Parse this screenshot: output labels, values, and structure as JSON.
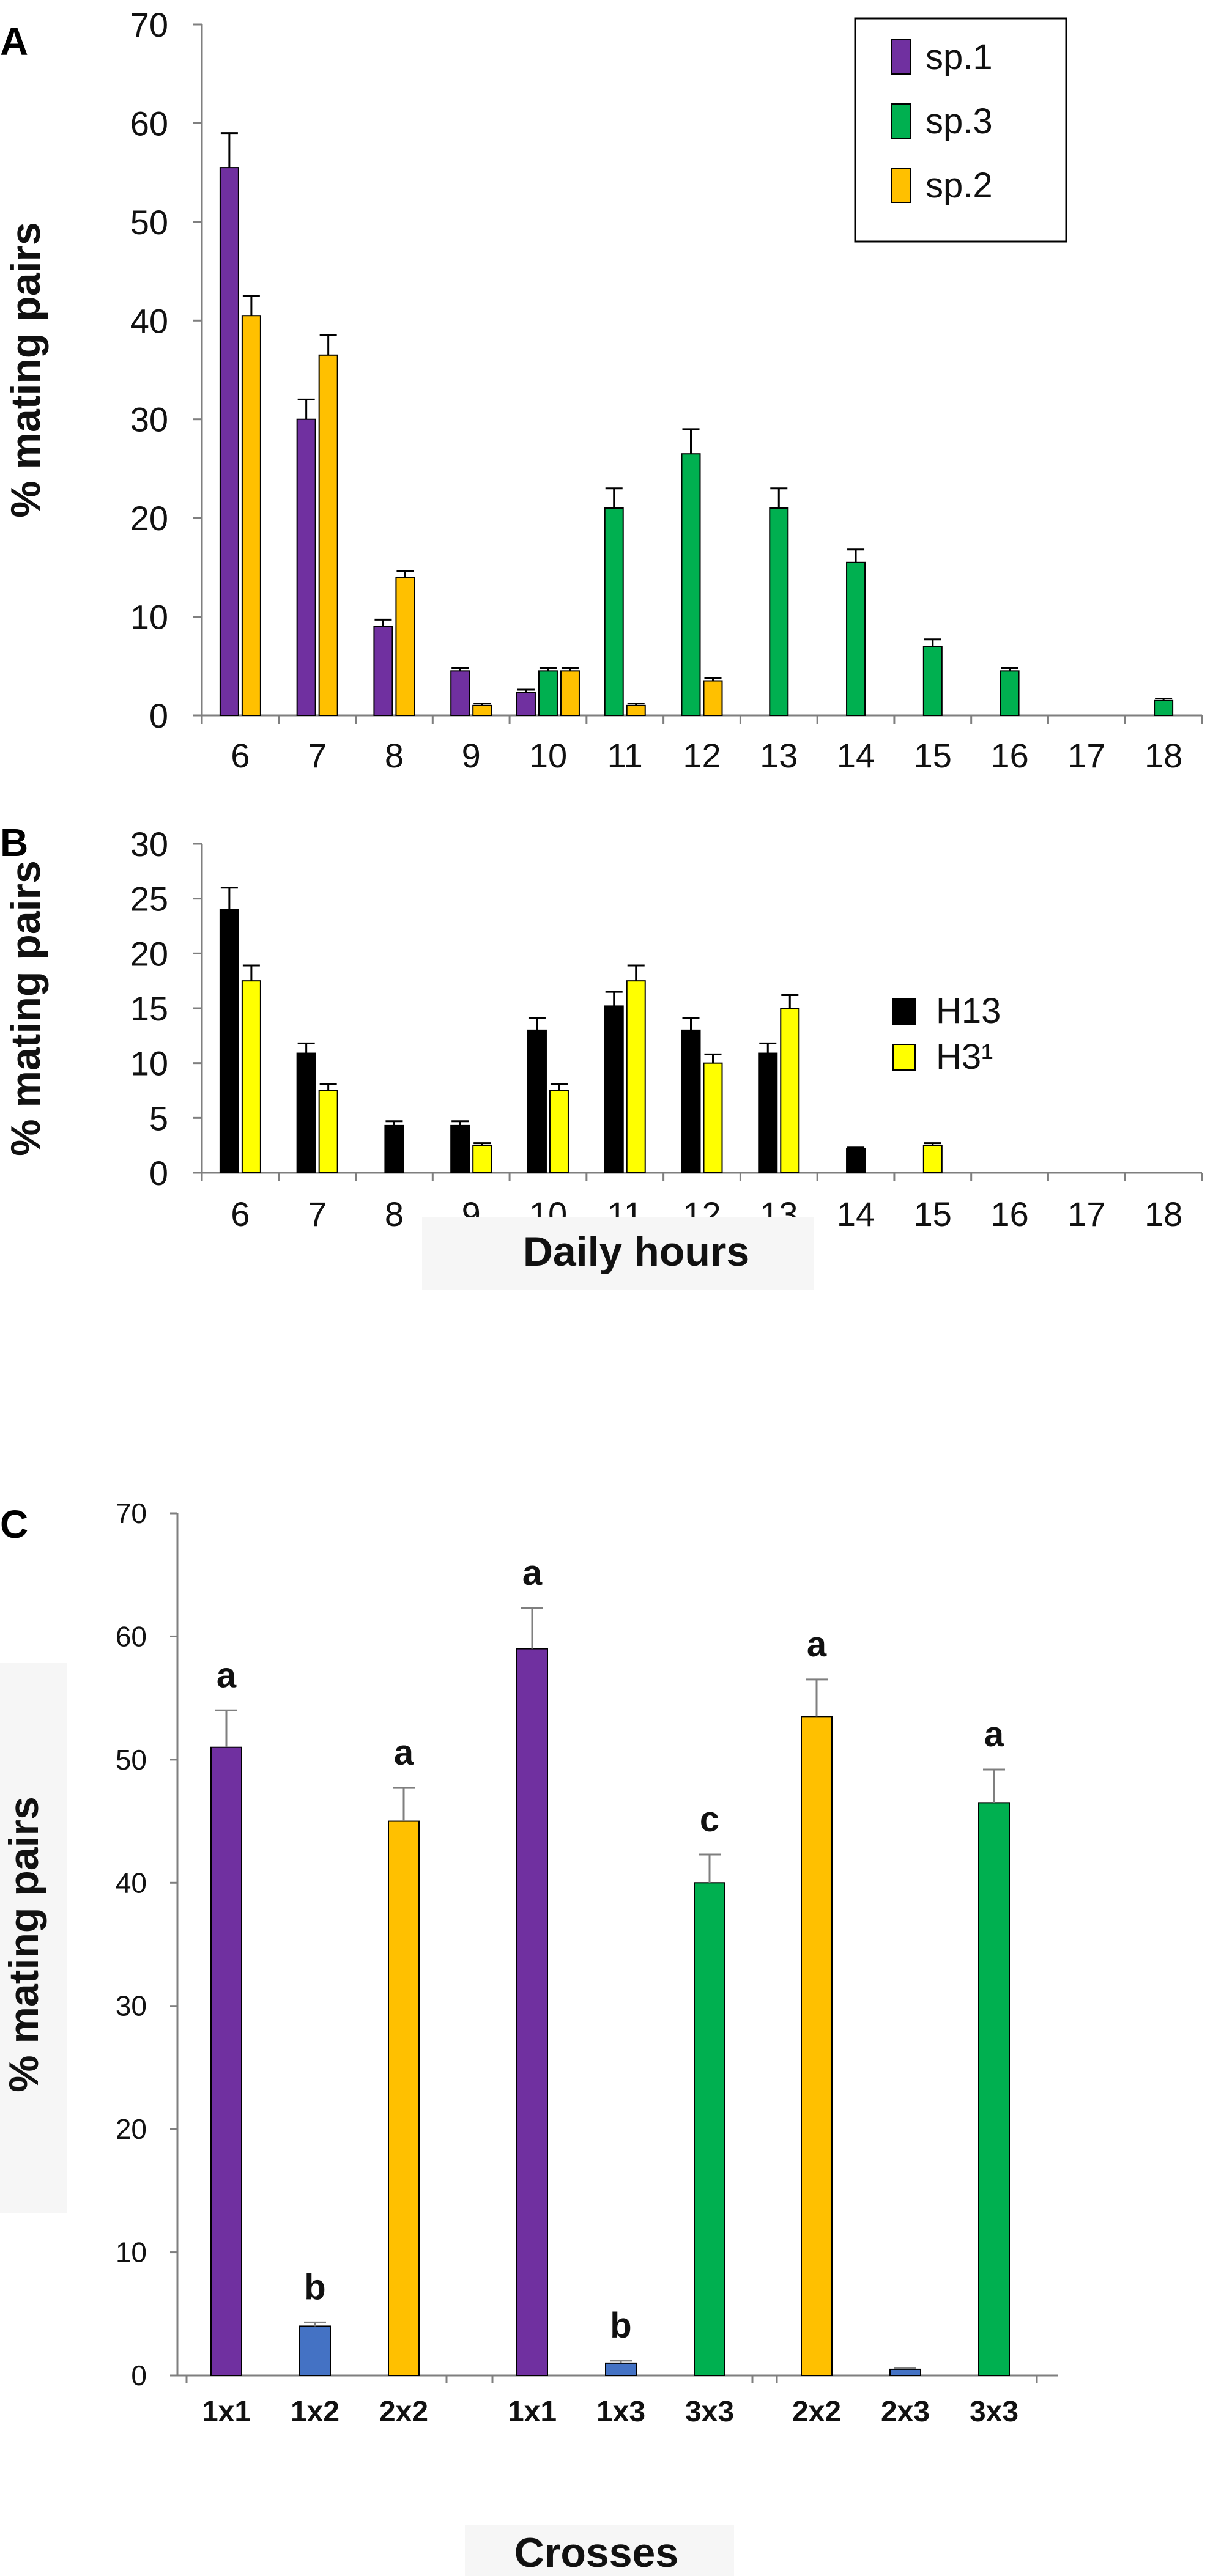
{
  "figure": {
    "panels": [
      {
        "id": "A",
        "letter": "A"
      },
      {
        "id": "B",
        "letter": "B"
      },
      {
        "id": "C",
        "letter": "C"
      }
    ]
  },
  "chart_data": [
    {
      "panel": "A",
      "type": "bar",
      "ylabel": "% mating pairs",
      "xlabel": "",
      "ylim": [
        0,
        70
      ],
      "yticks": [
        0,
        10,
        20,
        30,
        40,
        50,
        60,
        70
      ],
      "categories": [
        "6",
        "7",
        "8",
        "9",
        "10",
        "11",
        "12",
        "13",
        "14",
        "15",
        "16",
        "17",
        "18"
      ],
      "legend_position": "top-right",
      "series": [
        {
          "name": "sp.1",
          "color": "#7030a0",
          "values": [
            55.5,
            30,
            9,
            4.5,
            2.3,
            0,
            0,
            0,
            0,
            0,
            0,
            0,
            0
          ],
          "errors": [
            3.5,
            2,
            0.7,
            0.3,
            0.3,
            0,
            0,
            0,
            0,
            0,
            0,
            0,
            0
          ]
        },
        {
          "name": "sp.3",
          "color": "#00b050",
          "values": [
            0,
            0,
            0,
            0,
            4.5,
            21,
            26.5,
            21,
            15.5,
            7,
            4.5,
            0,
            1.5
          ],
          "errors": [
            0,
            0,
            0,
            0,
            0.3,
            2,
            2.5,
            2,
            1.3,
            0.7,
            0.3,
            0,
            0.2
          ]
        },
        {
          "name": "sp.2",
          "color": "#ffc000",
          "values": [
            40.5,
            36.5,
            14,
            1,
            4.5,
            1,
            3.5,
            0,
            0,
            0,
            0,
            0,
            0
          ],
          "errors": [
            2,
            2,
            0.6,
            0.2,
            0.3,
            0.2,
            0.3,
            0,
            0,
            0,
            0,
            0,
            0
          ]
        }
      ]
    },
    {
      "panel": "B",
      "type": "bar",
      "ylabel": "% mating pairs",
      "xlabel": "Daily hours",
      "ylim": [
        0,
        30
      ],
      "yticks": [
        0,
        5,
        10,
        15,
        20,
        25,
        30
      ],
      "categories": [
        "6",
        "7",
        "8",
        "9",
        "10",
        "11",
        "12",
        "13",
        "14",
        "15",
        "16",
        "17",
        "18"
      ],
      "legend_position": "right",
      "series": [
        {
          "name": "H13",
          "color": "#000000",
          "values": [
            24,
            10.9,
            4.3,
            4.3,
            13,
            15.2,
            13,
            10.9,
            2.2,
            0,
            0,
            0,
            0
          ],
          "errors": [
            2,
            0.9,
            0.4,
            0.4,
            1.1,
            1.3,
            1.1,
            0.9,
            0.1,
            0,
            0,
            0,
            0
          ]
        },
        {
          "name": "H3¹",
          "color": "#ffff00",
          "values": [
            17.5,
            7.5,
            0,
            2.5,
            7.5,
            17.5,
            10,
            15,
            0,
            2.5,
            0,
            0,
            0
          ],
          "errors": [
            1.4,
            0.6,
            0,
            0.2,
            0.6,
            1.4,
            0.8,
            1.2,
            0,
            0.2,
            0,
            0,
            0
          ]
        }
      ]
    },
    {
      "panel": "C",
      "type": "bar",
      "ylabel": "% mating pairs",
      "xlabel": "Crosses",
      "ylim": [
        0,
        70
      ],
      "yticks": [
        0,
        10,
        20,
        30,
        40,
        50,
        60,
        70
      ],
      "groups": [
        {
          "bars": [
            {
              "category": "1x1",
              "value": 51,
              "error": 3,
              "color": "#7030a0",
              "letter": "a"
            },
            {
              "category": "1x2",
              "value": 4,
              "error": 0.3,
              "color": "#4472c4",
              "letter": "b"
            },
            {
              "category": "2x2",
              "value": 45,
              "error": 2.7,
              "color": "#ffc000",
              "letter": "a"
            }
          ]
        },
        {
          "bars": [
            {
              "category": "1x1",
              "value": 59,
              "error": 3.3,
              "color": "#7030a0",
              "letter": "a"
            },
            {
              "category": "1x3",
              "value": 1,
              "error": 0.2,
              "color": "#4472c4",
              "letter": "b"
            },
            {
              "category": "3x3",
              "value": 40,
              "error": 2.3,
              "color": "#00b050",
              "letter": "c"
            }
          ]
        },
        {
          "bars": [
            {
              "category": "2x2",
              "value": 53.5,
              "error": 3,
              "color": "#ffc000",
              "letter": "a"
            },
            {
              "category": "2x3",
              "value": 0.5,
              "error": 0.1,
              "color": "#4472c4",
              "letter": ""
            },
            {
              "category": "3x3",
              "value": 46.5,
              "error": 2.7,
              "color": "#00b050",
              "letter": "a"
            }
          ]
        }
      ]
    }
  ]
}
